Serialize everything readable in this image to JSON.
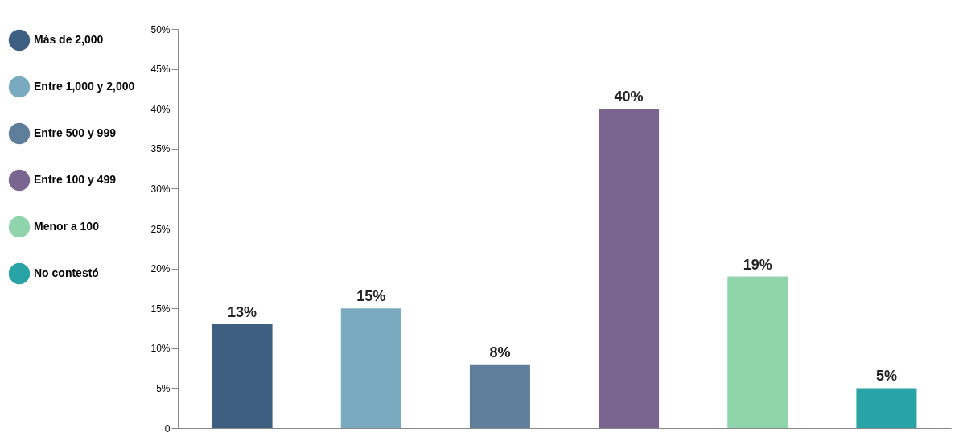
{
  "chart_data": {
    "type": "bar",
    "categories": [
      null,
      null,
      null,
      null,
      null,
      null
    ],
    "series": [
      {
        "name": "Más de 2,000",
        "color": "#3d5f82",
        "values": [
          13,
          null,
          null,
          null,
          null,
          null
        ],
        "value_labels": [
          "13%",
          null,
          null,
          null,
          null,
          null
        ]
      },
      {
        "name": "Entre 1,000 y 2,000",
        "color": "#7aaabf",
        "values": [
          null,
          15,
          null,
          null,
          null,
          null
        ],
        "value_labels": [
          null,
          "15%",
          null,
          null,
          null,
          null
        ]
      },
      {
        "name": "Entre 500 y 999",
        "color": "#5f7e9a",
        "values": [
          null,
          null,
          8,
          null,
          null,
          null
        ],
        "value_labels": [
          null,
          null,
          "8%",
          null,
          null,
          null
        ]
      },
      {
        "name": "Entre 100 y 499",
        "color": "#7a6590",
        "values": [
          null,
          null,
          null,
          40,
          null,
          null
        ],
        "value_labels": [
          null,
          null,
          null,
          "40%",
          null,
          null
        ]
      },
      {
        "name": "Menor a 100",
        "color": "#8fd4aa",
        "values": [
          null,
          null,
          null,
          null,
          19,
          null
        ],
        "value_labels": [
          null,
          null,
          null,
          null,
          "19%",
          null
        ]
      },
      {
        "name": "No contestó",
        "color": "#2aa3a6",
        "values": [
          null,
          null,
          null,
          null,
          null,
          5
        ],
        "value_labels": [
          null,
          null,
          null,
          null,
          null,
          "5%"
        ]
      }
    ],
    "ylim": [
      0,
      50
    ],
    "yticks": [
      0,
      {
        "value": 5,
        "label": "5%"
      },
      {
        "value": 10,
        "label": "10%"
      },
      {
        "value": 15,
        "label": "15%"
      },
      {
        "value": 20,
        "label": "20%"
      },
      {
        "value": 25,
        "label": "25%"
      },
      {
        "value": 30,
        "label": "30%"
      },
      {
        "value": 35,
        "label": "35%"
      },
      {
        "value": 40,
        "label": "40%"
      },
      {
        "value": 45,
        "label": "45%"
      },
      {
        "value": 50,
        "label": "50%"
      }
    ],
    "legend": "left",
    "tick_labels": "y"
  }
}
